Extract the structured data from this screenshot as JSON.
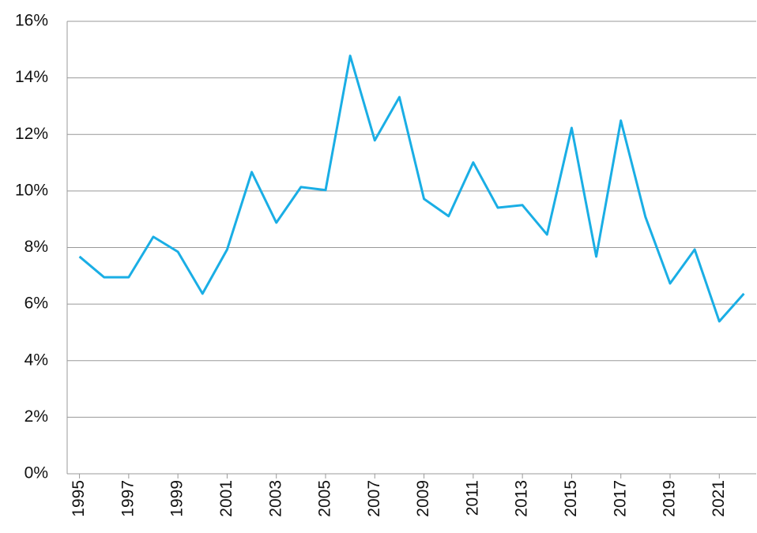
{
  "chart_data": {
    "type": "line",
    "x": [
      1995,
      1996,
      1997,
      1998,
      1999,
      2000,
      2001,
      2002,
      2003,
      2004,
      2005,
      2006,
      2007,
      2008,
      2009,
      2010,
      2011,
      2012,
      2013,
      2014,
      2015,
      2016,
      2017,
      2018,
      2019,
      2020,
      2021,
      2022
    ],
    "values": [
      7.68,
      6.95,
      6.95,
      8.38,
      7.85,
      6.37,
      7.93,
      10.67,
      8.88,
      10.14,
      10.03,
      14.78,
      11.79,
      13.32,
      9.72,
      9.11,
      11.01,
      9.41,
      9.5,
      8.46,
      12.23,
      7.68,
      12.49,
      9.08,
      6.73,
      7.93,
      5.39,
      6.37
    ],
    "color": "#1aaee5",
    "xlim": [
      1994.5,
      2022.5
    ],
    "xticks": [
      1995,
      1997,
      1999,
      2001,
      2003,
      2005,
      2007,
      2009,
      2011,
      2013,
      2015,
      2017,
      2019,
      2021
    ],
    "ylim": [
      0,
      16
    ],
    "yticks": [
      {
        "value": 0,
        "label": "0%"
      },
      {
        "value": 2,
        "label": "2%"
      },
      {
        "value": 4,
        "label": "4%"
      },
      {
        "value": 6,
        "label": "6%"
      },
      {
        "value": 8,
        "label": "8%"
      },
      {
        "value": 10,
        "label": "10%"
      },
      {
        "value": 12,
        "label": "12%"
      },
      {
        "value": 14,
        "label": "14%"
      },
      {
        "value": 16,
        "label": "16%"
      }
    ],
    "grid": true
  }
}
